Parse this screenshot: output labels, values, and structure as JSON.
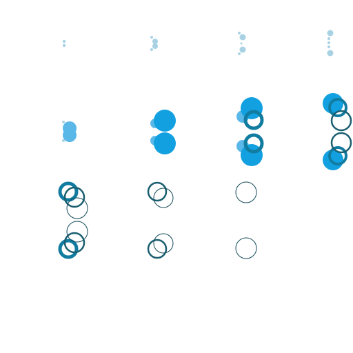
{
  "colors": {
    "pale": "#a8d2e4",
    "light": "#5ab8e8",
    "bright": "#12a0e0",
    "teal": "#127ca0",
    "dark": "#1a5f70",
    "darker": "#124a58"
  },
  "stages": [
    "stage-1",
    "stage-2",
    "stage-3",
    "stage-4"
  ],
  "rows": [
    "dots-row",
    "filled-row",
    "ring-row"
  ]
}
